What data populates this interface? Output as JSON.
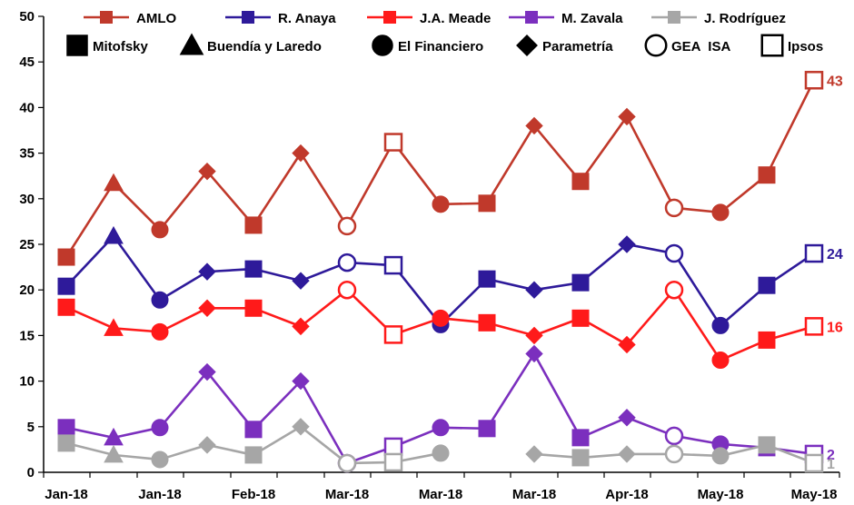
{
  "chart_data": {
    "type": "line",
    "title": "",
    "xlabel": "",
    "ylabel": "",
    "ylim": [
      0,
      50
    ],
    "yticks": [
      0,
      5,
      10,
      15,
      20,
      25,
      30,
      35,
      40,
      45,
      50
    ],
    "grid": false,
    "legend_position": "top",
    "x_tick_labels": [
      "Jan-18",
      "Jan-18",
      "Feb-18",
      "Mar-18",
      "Mar-18",
      "Mar-18",
      "Apr-18",
      "May-18",
      "May-18"
    ],
    "pollsters": [
      "Mitofsky",
      "Buendía y Laredo",
      "El Financiero",
      "Parametría",
      "GEA  ISA",
      "Ipsos"
    ],
    "marker_shapes": {
      "Mitofsky": "square-filled",
      "Buendía y Laredo": "triangle-filled",
      "El Financiero": "circle-filled",
      "Parametría": "diamond-filled",
      "GEA  ISA": "circle-open",
      "Ipsos": "square-open"
    },
    "polls": [
      {
        "pollster": "Mitofsky"
      },
      {
        "pollster": "Buendía y Laredo"
      },
      {
        "pollster": "El Financiero"
      },
      {
        "pollster": "Parametría"
      },
      {
        "pollster": "Mitofsky"
      },
      {
        "pollster": "Parametría"
      },
      {
        "pollster": "GEA  ISA"
      },
      {
        "pollster": "Ipsos"
      },
      {
        "pollster": "El Financiero"
      },
      {
        "pollster": "Mitofsky"
      },
      {
        "pollster": "Parametría"
      },
      {
        "pollster": "Mitofsky"
      },
      {
        "pollster": "Parametría"
      },
      {
        "pollster": "GEA  ISA"
      },
      {
        "pollster": "El Financiero"
      },
      {
        "pollster": "Mitofsky"
      },
      {
        "pollster": "Ipsos"
      }
    ],
    "series": [
      {
        "name": "AMLO",
        "color": "#C0392B",
        "end_label": "43",
        "values": [
          23.6,
          31.7,
          26.6,
          33,
          27.1,
          35,
          27,
          36.2,
          29.4,
          29.5,
          38,
          31.9,
          39,
          29,
          28.5,
          32.6,
          43
        ]
      },
      {
        "name": "R. Anaya",
        "color": "#2E1A9A",
        "end_label": "24",
        "values": [
          20.4,
          25.9,
          18.9,
          22,
          22.3,
          21,
          23,
          22.7,
          16.2,
          21.2,
          20,
          20.8,
          25,
          24,
          16.1,
          20.5,
          24
        ]
      },
      {
        "name": "J.A. Meade",
        "color": "#FF1A1A",
        "end_label": "16",
        "values": [
          18.1,
          15.8,
          15.4,
          18,
          18,
          16,
          20,
          15.1,
          16.9,
          16.4,
          15,
          16.9,
          14,
          20,
          12.3,
          14.5,
          16
        ]
      },
      {
        "name": "M. Zavala",
        "color": "#7B2FBE",
        "end_label": "2",
        "values": [
          4.9,
          3.8,
          4.9,
          11,
          4.7,
          10,
          1,
          2.8,
          4.9,
          4.8,
          13,
          3.8,
          6,
          4,
          3.1,
          2.7,
          2
        ]
      },
      {
        "name": "J. Rodríguez",
        "color": "#A6A6A6",
        "end_label": "1",
        "values": [
          3.2,
          1.9,
          1.4,
          3,
          1.9,
          5,
          1,
          1.1,
          2.1,
          null,
          2,
          1.6,
          2,
          2,
          1.8,
          3,
          1
        ]
      }
    ]
  }
}
